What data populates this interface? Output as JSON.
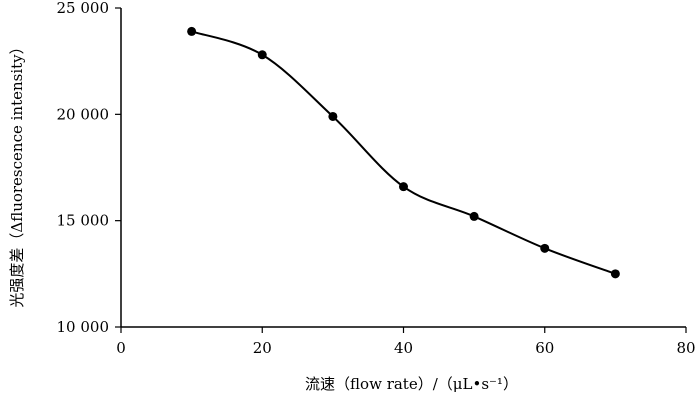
{
  "chart_data": {
    "type": "line",
    "xlabel": "流速（flow rate）/（μL•s⁻¹）",
    "ylabel": "光强度差（Δfluorescence intensity）",
    "xlim": [
      0,
      80
    ],
    "ylim": [
      10000,
      25000
    ],
    "x_ticks": [
      0,
      20,
      40,
      60,
      80
    ],
    "x_tick_labels": [
      "0",
      "20",
      "40",
      "60",
      "80"
    ],
    "y_ticks": [
      10000,
      15000,
      20000,
      25000
    ],
    "y_tick_labels": [
      "10 000",
      "15 000",
      "20 000",
      "25 000"
    ],
    "grid": false,
    "series": [
      {
        "x": [
          10,
          20,
          30,
          40,
          50,
          60,
          70
        ],
        "y": [
          23900,
          22800,
          19900,
          16600,
          15200,
          13700,
          12500
        ]
      }
    ],
    "line_color": "#000000",
    "marker_color": "#000000"
  }
}
